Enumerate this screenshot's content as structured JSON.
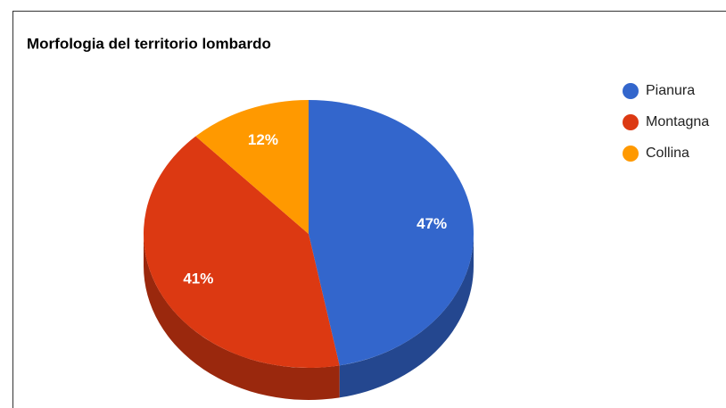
{
  "chart_data": {
    "type": "pie",
    "title": "Morfologia del territorio lombardo",
    "categories": [
      "Pianura",
      "Montagna",
      "Collina"
    ],
    "values": [
      47,
      41,
      12
    ],
    "value_labels": [
      "47%",
      "41%",
      "12%"
    ],
    "colors": [
      "#3366cc",
      "#dc3912",
      "#ff9900"
    ],
    "legend": "right"
  }
}
